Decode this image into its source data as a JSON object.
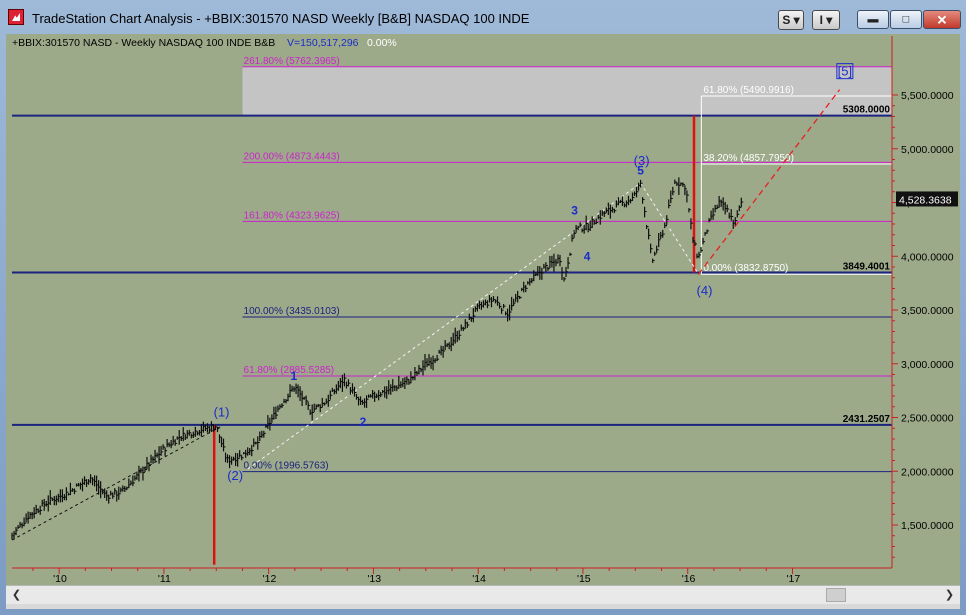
{
  "window": {
    "title": "TradeStation Chart Analysis - +BBIX:301570 NASD Weekly [B&B] NASDAQ 100 INDE",
    "buttons": {
      "s_label": "S ▾",
      "i_label": "I ▾"
    },
    "controls": [
      "minimize-icon",
      "maximize-icon",
      "close-icon"
    ]
  },
  "chart_header": {
    "symbol_text": "+BBIX:301570 NASD - Weekly  NASDAQ 100 INDE  B&B",
    "volume_text": "V=150,517,296",
    "change_text": "0.00%",
    "colors": {
      "symbol": "#000000",
      "volume": "#1a2ccc",
      "change": "#ffffff"
    }
  },
  "chart_data": {
    "type": "line",
    "title": "",
    "x_axis": {
      "ticks": [
        "'10",
        "'11",
        "'12",
        "'13",
        "'14",
        "'15",
        "'16",
        "'17"
      ]
    },
    "y_axis": {
      "ticks": [
        "5,500.0000",
        "5,000.0000",
        "4,500.0000",
        "4,000.0000",
        "3,500.0000",
        "3,000.0000",
        "2,500.0000",
        "2,000.0000",
        "1,500.0000"
      ],
      "tick_values": [
        5500,
        5000,
        4500,
        4000,
        3500,
        3000,
        2500,
        2000,
        1500
      ],
      "range": [
        1100,
        5900
      ]
    },
    "last_price": {
      "label": "4,528.3638",
      "value": 4528.3638
    },
    "price_series": [
      {
        "t": 2009.55,
        "v": 1400
      },
      {
        "t": 2009.7,
        "v": 1580
      },
      {
        "t": 2009.9,
        "v": 1720
      },
      {
        "t": 2010.1,
        "v": 1810
      },
      {
        "t": 2010.3,
        "v": 1940
      },
      {
        "t": 2010.45,
        "v": 1770
      },
      {
        "t": 2010.6,
        "v": 1810
      },
      {
        "t": 2010.8,
        "v": 2010
      },
      {
        "t": 2011.0,
        "v": 2210
      },
      {
        "t": 2011.15,
        "v": 2320
      },
      {
        "t": 2011.35,
        "v": 2390
      },
      {
        "t": 2011.5,
        "v": 2420
      },
      {
        "t": 2011.6,
        "v": 2100
      },
      {
        "t": 2011.75,
        "v": 2150
      },
      {
        "t": 2011.9,
        "v": 2270
      },
      {
        "t": 2012.1,
        "v": 2600
      },
      {
        "t": 2012.25,
        "v": 2790
      },
      {
        "t": 2012.4,
        "v": 2560
      },
      {
        "t": 2012.55,
        "v": 2650
      },
      {
        "t": 2012.72,
        "v": 2860
      },
      {
        "t": 2012.88,
        "v": 2620
      },
      {
        "t": 2013.0,
        "v": 2700
      },
      {
        "t": 2013.2,
        "v": 2780
      },
      {
        "t": 2013.35,
        "v": 2850
      },
      {
        "t": 2013.5,
        "v": 3000
      },
      {
        "t": 2013.65,
        "v": 3100
      },
      {
        "t": 2013.85,
        "v": 3320
      },
      {
        "t": 2014.0,
        "v": 3520
      },
      {
        "t": 2014.15,
        "v": 3600
      },
      {
        "t": 2014.28,
        "v": 3470
      },
      {
        "t": 2014.45,
        "v": 3720
      },
      {
        "t": 2014.62,
        "v": 3880
      },
      {
        "t": 2014.78,
        "v": 3980
      },
      {
        "t": 2014.82,
        "v": 3780
      },
      {
        "t": 2014.92,
        "v": 4250
      },
      {
        "t": 2015.05,
        "v": 4280
      },
      {
        "t": 2015.2,
        "v": 4400
      },
      {
        "t": 2015.35,
        "v": 4480
      },
      {
        "t": 2015.48,
        "v": 4540
      },
      {
        "t": 2015.55,
        "v": 4680
      },
      {
        "t": 2015.66,
        "v": 3950
      },
      {
        "t": 2015.78,
        "v": 4280
      },
      {
        "t": 2015.88,
        "v": 4700
      },
      {
        "t": 2015.98,
        "v": 4650
      },
      {
        "t": 2016.05,
        "v": 4150
      },
      {
        "t": 2016.1,
        "v": 3980
      },
      {
        "t": 2016.2,
        "v": 4300
      },
      {
        "t": 2016.3,
        "v": 4500
      },
      {
        "t": 2016.38,
        "v": 4420
      },
      {
        "t": 2016.45,
        "v": 4300
      },
      {
        "t": 2016.52,
        "v": 4528
      }
    ],
    "horizontal_lines": [
      {
        "name": "level-5308",
        "value": 5308,
        "label": "5308.0000",
        "color": "#1a237e"
      },
      {
        "name": "level-3849",
        "value": 3849.4001,
        "label": "3849.4001",
        "color": "#1a237e"
      },
      {
        "name": "level-2431",
        "value": 2431.2507,
        "label": "2431.2507",
        "color": "#1a237e"
      }
    ],
    "fib_extension": {
      "levels": [
        {
          "pct": "261.80%",
          "label": "261.80% (5762.3965)",
          "value": 5762.3965,
          "color": "#cc22cc"
        },
        {
          "pct": "200.00%",
          "label": "200.00% (4873.4443)",
          "value": 4873.4443,
          "color": "#cc22cc"
        },
        {
          "pct": "161.80%",
          "label": "161.80% (4323.9625)",
          "value": 4323.9625,
          "color": "#cc22cc"
        },
        {
          "pct": "100.00%",
          "label": "100.00% (3435.0103)",
          "value": 3435.0103,
          "color": "#1a237e"
        },
        {
          "pct": "61.80%",
          "label": "61.80% (2885.5285)",
          "value": 2885.5285,
          "color": "#cc22cc"
        },
        {
          "pct": "0.00%",
          "label": "0.00% (1996.5763)",
          "value": 1996.5763,
          "color": "#1a237e"
        }
      ]
    },
    "fib_retrace_box": {
      "levels": [
        {
          "label": "61.80% (5490.9916)",
          "value": 5490.9916
        },
        {
          "label": "38.20% (4857.7950)",
          "value": 4857.795
        },
        {
          "label": "0.00% (3832.8750)",
          "value": 3832.875
        }
      ],
      "color": "#ffffff"
    },
    "wave_labels": [
      {
        "text": "(1)",
        "t": 2011.55,
        "v": 2510,
        "color": "#1a2ccc"
      },
      {
        "text": "(2)",
        "t": 2011.68,
        "v": 1920,
        "color": "#1a2ccc"
      },
      {
        "text": "1",
        "t": 2012.24,
        "v": 2850,
        "color": "#1a2ccc"
      },
      {
        "text": "2",
        "t": 2012.9,
        "v": 2420,
        "color": "#1a2ccc"
      },
      {
        "text": "3",
        "t": 2014.92,
        "v": 4390,
        "color": "#1a2ccc"
      },
      {
        "text": "4",
        "t": 2015.04,
        "v": 3960,
        "color": "#1a2ccc"
      },
      {
        "text": "5",
        "t": 2015.55,
        "v": 4760,
        "color": "#1a2ccc"
      },
      {
        "text": "(3)",
        "t": 2015.56,
        "v": 4850,
        "color": "#1a2ccc"
      },
      {
        "text": "(4)",
        "t": 2016.16,
        "v": 3640,
        "color": "#1a2ccc"
      },
      {
        "text": "[5]",
        "t": 2017.5,
        "v": 5680,
        "color": "#1a2ccc"
      }
    ],
    "red_verticals": [
      {
        "name": "vertical-2011",
        "t": 2011.48,
        "from": 2431,
        "to": 1130
      },
      {
        "name": "vertical-2016",
        "t": 2016.06,
        "from": 5308,
        "to": 3849
      }
    ],
    "projection_line": {
      "from": {
        "t": 2016.1,
        "v": 3830
      },
      "to": {
        "t": 2017.45,
        "v": 5550
      },
      "color": "#e82020"
    },
    "trend_lines": [
      {
        "from": {
          "t": 2009.55,
          "v": 1360
        },
        "to": {
          "t": 2011.55,
          "v": 2420
        }
      },
      {
        "from": {
          "t": 2011.8,
          "v": 2020
        },
        "to": {
          "t": 2015.55,
          "v": 4680
        }
      },
      {
        "from": {
          "t": 2015.55,
          "v": 4680
        },
        "to": {
          "t": 2016.1,
          "v": 3840
        }
      }
    ],
    "gray_box": {
      "from_t": 2011.75,
      "to_t": 2017.95,
      "v_low": 5308,
      "v_high": 5762.3965,
      "color": "#c4c4c4"
    }
  }
}
